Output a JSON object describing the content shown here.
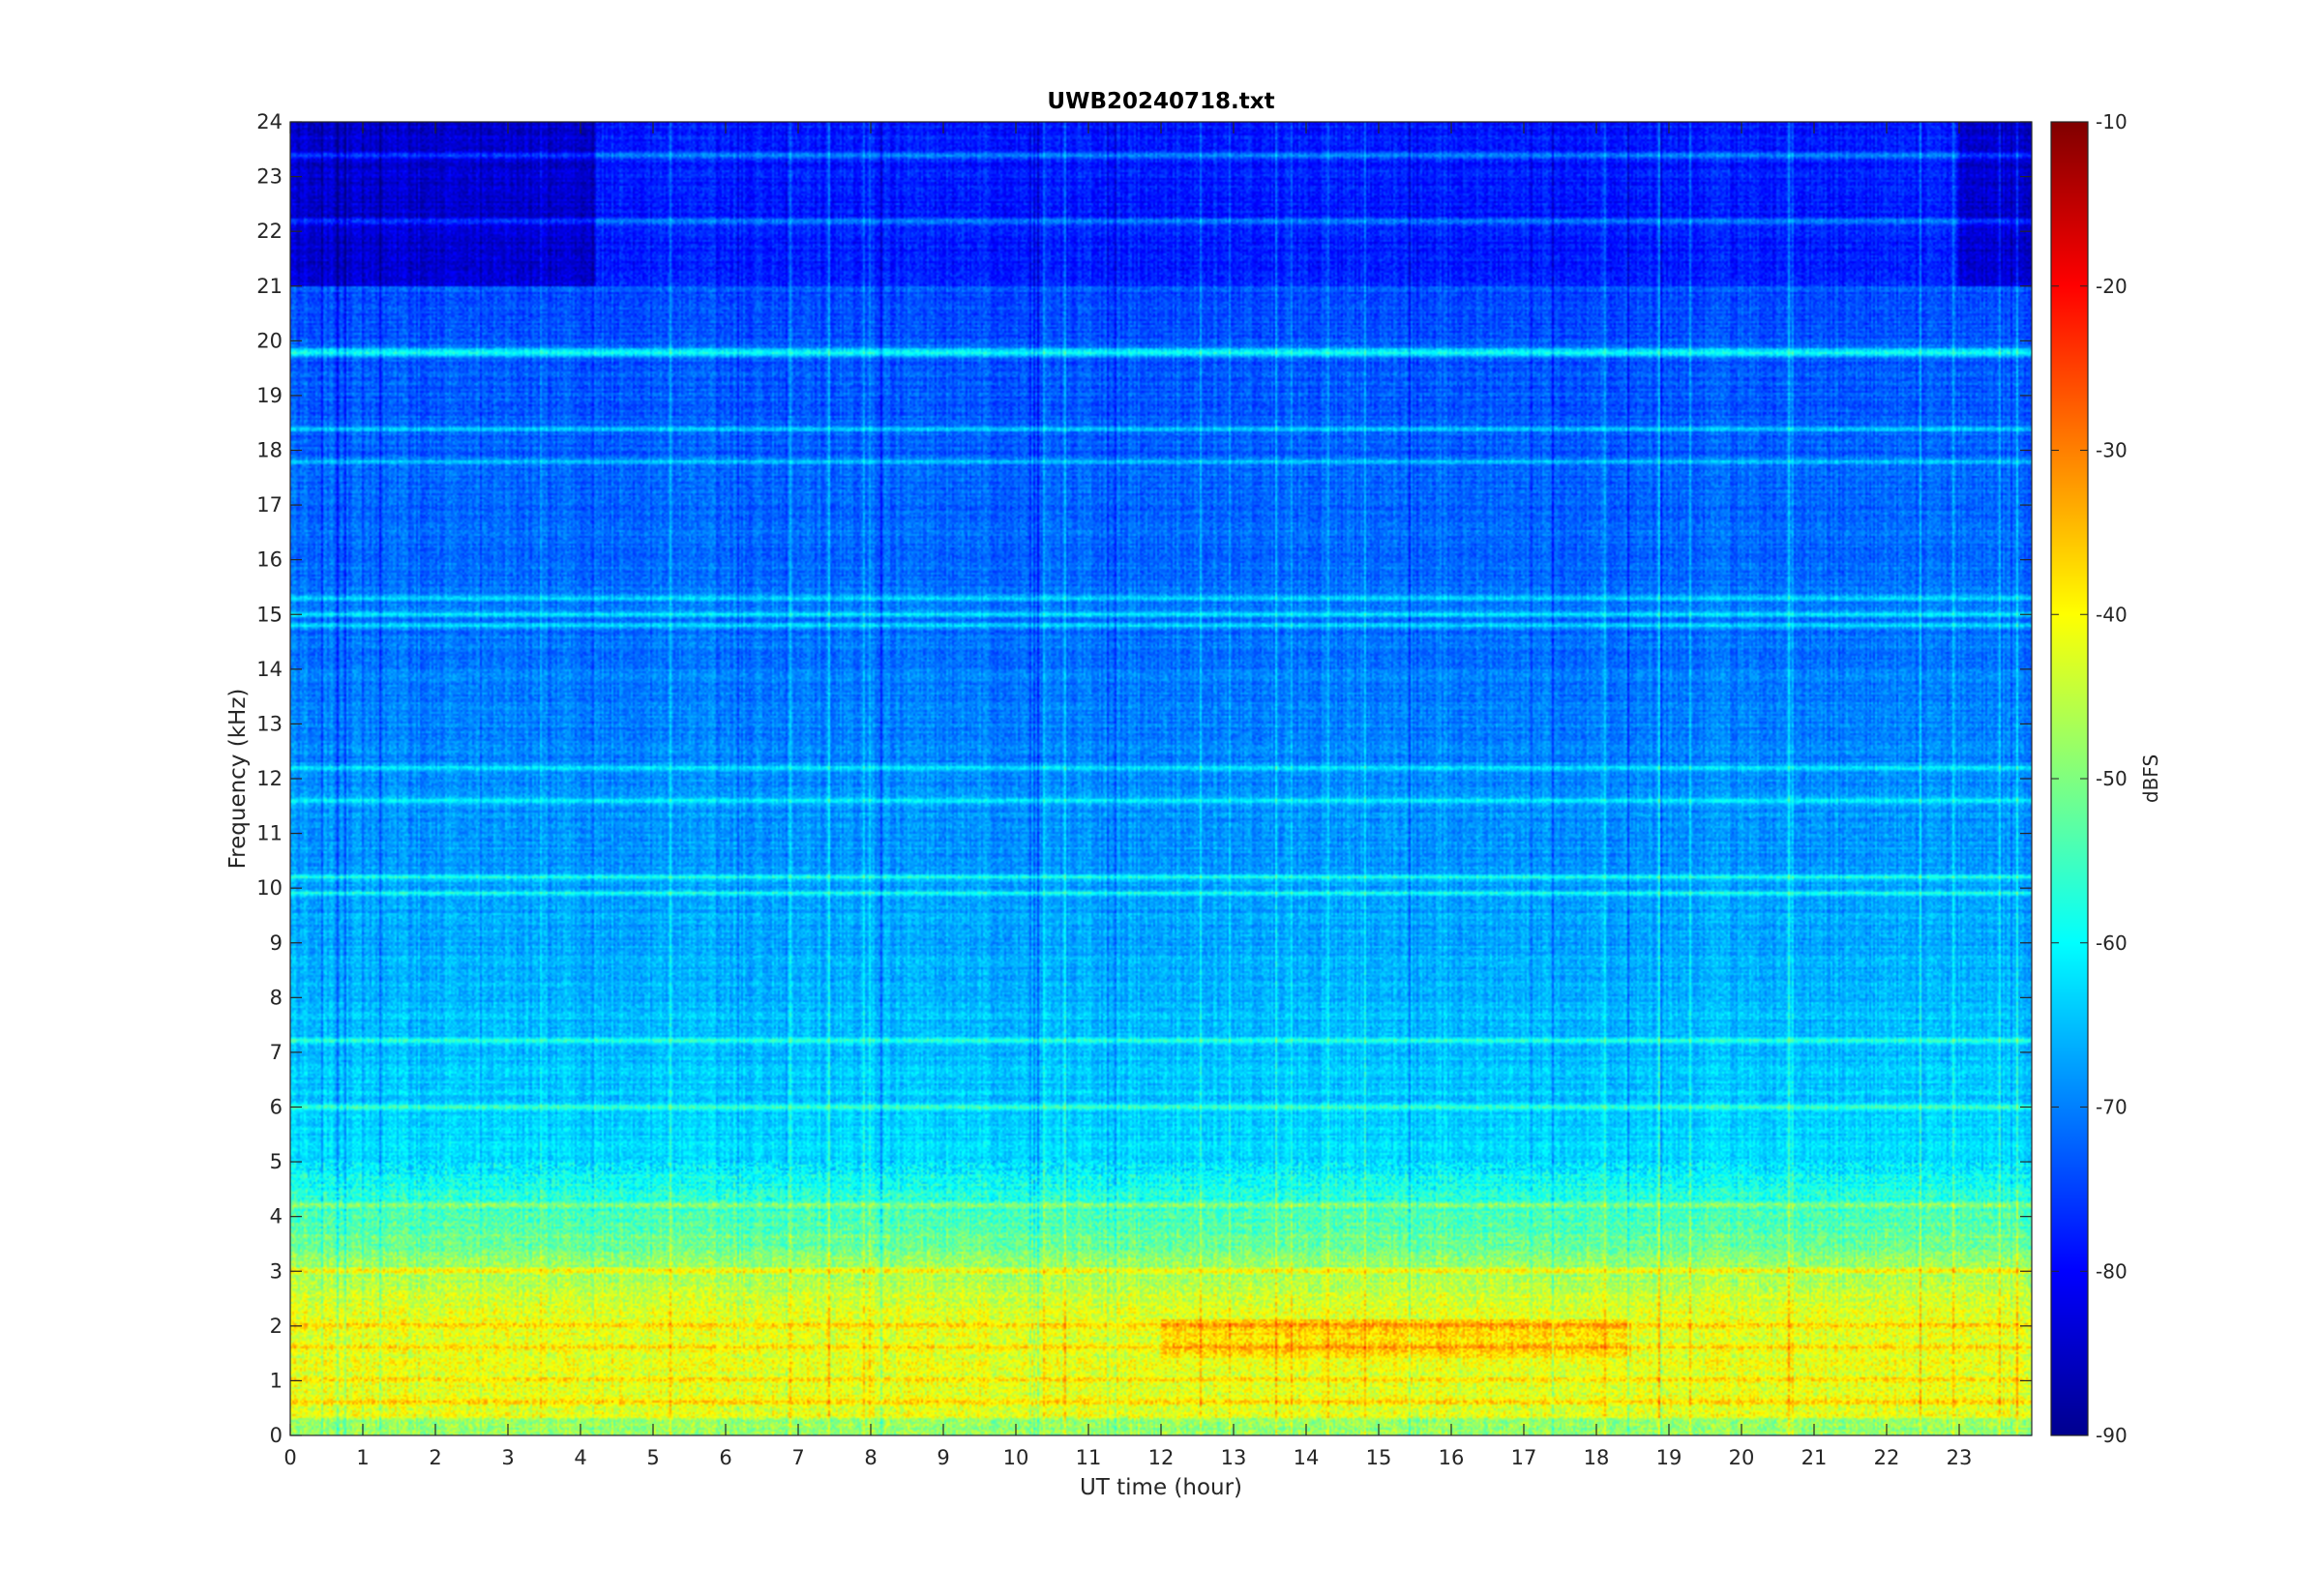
{
  "chart_data": {
    "type": "heatmap",
    "title": "UWB20240718.txt",
    "xlabel": "UT time (hour)",
    "ylabel": "Frequency (kHz)",
    "xlim": [
      0,
      24
    ],
    "ylim": [
      0,
      24
    ],
    "x_ticks": [
      "0",
      "1",
      "2",
      "3",
      "4",
      "5",
      "6",
      "7",
      "8",
      "9",
      "10",
      "11",
      "12",
      "13",
      "14",
      "15",
      "16",
      "17",
      "18",
      "19",
      "20",
      "21",
      "22",
      "23"
    ],
    "y_ticks": [
      "0",
      "1",
      "2",
      "3",
      "4",
      "5",
      "6",
      "7",
      "8",
      "9",
      "10",
      "11",
      "12",
      "13",
      "14",
      "15",
      "16",
      "17",
      "18",
      "19",
      "20",
      "21",
      "22",
      "23",
      "24"
    ],
    "colorbar": {
      "label": "dBFS",
      "range": [
        -90,
        -10
      ],
      "ticks": [
        "-10",
        "-20",
        "-30",
        "-40",
        "-50",
        "-60",
        "-70",
        "-80",
        "-90"
      ],
      "colormap": "jet"
    },
    "z_units": "dBFS",
    "features": {
      "background_level_low_freq": -42,
      "background_level_mid_freq": -70,
      "background_level_high_freq": -78,
      "strong_tone_khz": 19.8,
      "tone_khz": [
        23.4,
        22.2,
        17.8,
        18.4,
        15.3,
        15.0,
        14.8,
        10.2,
        9.9,
        12.2,
        11.6,
        7.2,
        6.0,
        4.2,
        3.0,
        2.0,
        1.6,
        1.0,
        0.6
      ]
    }
  }
}
